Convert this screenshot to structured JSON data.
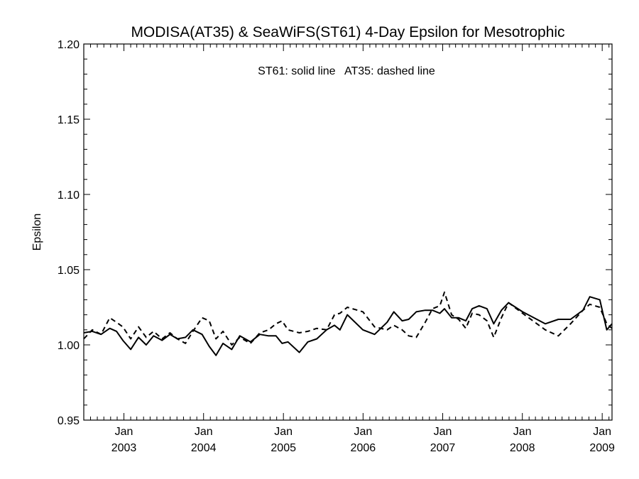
{
  "chart_data": {
    "type": "line",
    "title": "MODISA(AT35) & SeaWiFS(ST61) 4-Day Epsilon for Mesotrophic",
    "annotation": "ST61: solid line   AT35: dashed line",
    "xlabel": "",
    "ylabel": "Epsilon",
    "ylim": [
      0.95,
      1.2
    ],
    "yticks": [
      "0.95",
      "1.00",
      "1.05",
      "1.10",
      "1.15",
      "1.20"
    ],
    "xlim": [
      "2002-07-01",
      "2009-02-15"
    ],
    "xticks": [
      {
        "month": "Jan",
        "year": "2003",
        "date": "2003-01-01"
      },
      {
        "month": "Jan",
        "year": "2004",
        "date": "2004-01-01"
      },
      {
        "month": "Jan",
        "year": "2005",
        "date": "2005-01-01"
      },
      {
        "month": "Jan",
        "year": "2006",
        "date": "2006-01-01"
      },
      {
        "month": "Jan",
        "year": "2007",
        "date": "2007-01-01"
      },
      {
        "month": "Jan",
        "year": "2008",
        "date": "2008-01-01"
      },
      {
        "month": "Jan",
        "year": "2009",
        "date": "2009-01-01"
      }
    ],
    "series": [
      {
        "name": "ST61",
        "style": "solid",
        "x": [
          "2002-07-01",
          "2002-08-09",
          "2002-09-18",
          "2002-10-28",
          "2002-11-28",
          "2002-12-27",
          "2003-02-01",
          "2003-03-09",
          "2003-04-13",
          "2003-05-17",
          "2003-06-25",
          "2003-07-31",
          "2003-09-03",
          "2003-10-10",
          "2003-11-13",
          "2003-12-25",
          "2004-01-27",
          "2004-02-27",
          "2004-03-30",
          "2004-05-09",
          "2004-06-15",
          "2004-08-03",
          "2004-09-15",
          "2004-10-25",
          "2004-11-28",
          "2004-12-26",
          "2005-01-22",
          "2005-03-15",
          "2005-04-23",
          "2005-06-03",
          "2005-07-18",
          "2005-08-23",
          "2005-09-17",
          "2005-10-21",
          "2005-12-31",
          "2006-02-23",
          "2006-04-21",
          "2006-05-22",
          "2006-06-29",
          "2006-07-29",
          "2006-09-02",
          "2006-10-13",
          "2006-11-15",
          "2006-12-19",
          "2007-01-09",
          "2007-02-11",
          "2007-03-15",
          "2007-04-17",
          "2007-05-16",
          "2007-06-17",
          "2007-07-23",
          "2007-08-23",
          "2007-09-27",
          "2007-10-30",
          "2008-01-02",
          "2008-04-15",
          "2008-06-14",
          "2008-08-09",
          "2008-10-05",
          "2008-11-05",
          "2008-12-21",
          "2009-01-22",
          "2009-02-15"
        ],
        "values": [
          1.008,
          1.009,
          1.007,
          1.011,
          1.009,
          1.003,
          0.997,
          1.005,
          1.0,
          1.006,
          1.003,
          1.007,
          1.004,
          1.005,
          1.01,
          1.007,
          0.999,
          0.993,
          1.001,
          0.997,
          1.006,
          1.002,
          1.007,
          1.006,
          1.006,
          1.001,
          1.002,
          0.995,
          1.002,
          1.004,
          1.01,
          1.013,
          1.01,
          1.02,
          1.01,
          1.007,
          1.015,
          1.022,
          1.016,
          1.017,
          1.022,
          1.023,
          1.023,
          1.021,
          1.024,
          1.018,
          1.018,
          1.016,
          1.024,
          1.026,
          1.024,
          1.014,
          1.023,
          1.028,
          1.022,
          1.014,
          1.017,
          1.017,
          1.023,
          1.032,
          1.03,
          1.01,
          1.014
        ]
      },
      {
        "name": "AT35",
        "style": "dashed",
        "x": [
          "2002-07-01",
          "2002-08-09",
          "2002-09-18",
          "2002-10-28",
          "2002-11-28",
          "2002-12-27",
          "2003-02-01",
          "2003-03-09",
          "2003-04-13",
          "2003-05-17",
          "2003-06-25",
          "2003-07-31",
          "2003-09-03",
          "2003-10-10",
          "2003-11-13",
          "2003-12-25",
          "2004-01-27",
          "2004-02-27",
          "2004-03-30",
          "2004-05-09",
          "2004-06-15",
          "2004-08-03",
          "2004-09-15",
          "2004-10-25",
          "2004-11-28",
          "2004-12-26",
          "2005-01-22",
          "2005-03-15",
          "2005-04-23",
          "2005-06-03",
          "2005-07-18",
          "2005-08-23",
          "2005-09-17",
          "2005-10-21",
          "2005-12-31",
          "2006-02-23",
          "2006-04-21",
          "2006-05-22",
          "2006-06-29",
          "2006-07-29",
          "2006-09-02",
          "2006-10-13",
          "2006-11-15",
          "2006-12-19",
          "2007-01-09",
          "2007-02-11",
          "2007-03-15",
          "2007-04-17",
          "2007-05-16",
          "2007-06-17",
          "2007-07-23",
          "2007-08-23",
          "2007-09-27",
          "2007-10-30",
          "2008-01-02",
          "2008-04-15",
          "2008-06-14",
          "2008-08-09",
          "2008-10-05",
          "2008-11-05",
          "2008-12-21",
          "2009-01-22",
          "2009-02-15"
        ],
        "values": [
          1.004,
          1.01,
          1.007,
          1.018,
          1.015,
          1.012,
          1.004,
          1.012,
          1.005,
          1.009,
          1.004,
          1.008,
          1.004,
          1.001,
          1.009,
          1.018,
          1.016,
          1.004,
          1.009,
          1.0,
          1.005,
          1.001,
          1.008,
          1.01,
          1.014,
          1.016,
          1.01,
          1.008,
          1.009,
          1.011,
          1.01,
          1.02,
          1.021,
          1.025,
          1.022,
          1.012,
          1.01,
          1.013,
          1.01,
          1.006,
          1.005,
          1.015,
          1.024,
          1.026,
          1.035,
          1.02,
          1.017,
          1.011,
          1.021,
          1.02,
          1.016,
          1.005,
          1.018,
          1.028,
          1.021,
          1.01,
          1.006,
          1.014,
          1.023,
          1.027,
          1.025,
          1.014,
          1.011
        ]
      }
    ],
    "grid": false,
    "legend": "none"
  }
}
